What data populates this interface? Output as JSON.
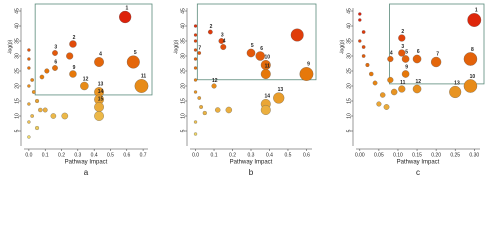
{
  "chart_data": [
    {
      "type": "scatter",
      "panel": "a",
      "xlabel": "Pathway Impact",
      "ylabel": "-log(p)",
      "x": [
        0.59,
        0.27,
        0.16,
        0.43,
        0.64,
        0.16,
        0.25,
        0.11,
        0.27,
        0.08,
        0.69,
        0.34,
        0.43,
        0.43,
        0.43,
        0.0,
        0.0,
        0.0,
        0.02,
        0.03,
        0.05,
        0.07,
        0.0,
        0.0,
        0.02,
        0.1,
        0.15,
        0.22,
        0.43,
        0.0,
        0.05,
        0.0
      ],
      "values": [
        43,
        34,
        31,
        28,
        28,
        26,
        30,
        25,
        24,
        23,
        20,
        20,
        18,
        15.5,
        13,
        32,
        29,
        26,
        22,
        18,
        15,
        12,
        20,
        14,
        10,
        12,
        10,
        10,
        10,
        8,
        6,
        3
      ],
      "point_labels": [
        "1",
        "2",
        "3",
        "4",
        "5",
        "6",
        null,
        null,
        "9",
        null,
        "11",
        "12",
        "13",
        "14",
        "15",
        null,
        null,
        null,
        null,
        null,
        null,
        null,
        null,
        null,
        null,
        null,
        null,
        null,
        null,
        null,
        null,
        null
      ],
      "xlim": [
        -0.03,
        0.73
      ],
      "xticks": [
        {
          "value": 0,
          "label": "0.0"
        },
        0.1,
        0.2,
        0.3,
        0.4,
        0.5,
        0.6,
        0.7
      ],
      "ylim": [
        0,
        46
      ],
      "yticks": [
        5,
        10,
        15,
        20,
        25,
        30,
        35,
        40,
        45
      ]
    },
    {
      "type": "scatter",
      "panel": "b",
      "xlabel": "Pathway Impact",
      "ylabel": "-log(p)",
      "x": [
        0.08,
        0.14,
        0.15,
        0.3,
        0.35,
        0.02,
        0.55,
        0.6,
        0.38,
        0.38,
        0.1,
        0.45,
        0.38,
        0.38,
        0.0,
        0.0,
        0.0,
        0.0,
        0.0,
        0.0,
        0.0,
        0.0,
        0.02,
        0.03,
        0.05,
        0.12,
        0.18,
        0.0,
        0.0
      ],
      "values": [
        38,
        35,
        33,
        31,
        30,
        31,
        37,
        24,
        27,
        24,
        20,
        16,
        14,
        12,
        40,
        37,
        35,
        32,
        29,
        26,
        22,
        18,
        16,
        13,
        11,
        12,
        12,
        8,
        4
      ],
      "point_labels": [
        "2",
        "3",
        "4",
        "5",
        "6",
        "7",
        null,
        "9",
        "10",
        "11",
        "12",
        "13",
        "14",
        null,
        null,
        null,
        null,
        null,
        null,
        null,
        null,
        null,
        null,
        null,
        null,
        null,
        null,
        null,
        null
      ],
      "xlim": [
        -0.03,
        0.63
      ],
      "xticks": [
        {
          "value": 0,
          "label": "0.0"
        },
        0.1,
        0.2,
        0.3,
        0.4,
        0.5,
        0.6
      ],
      "ylim": [
        0,
        46
      ],
      "yticks": [
        5,
        10,
        15,
        20,
        25,
        30,
        35,
        40,
        45
      ]
    },
    {
      "type": "scatter",
      "panel": "c",
      "xlabel": "Pathway Impact",
      "ylabel": "-log(p)",
      "x": [
        0.3,
        0.11,
        0.11,
        0.08,
        0.12,
        0.15,
        0.2,
        0.29,
        0.12,
        0.29,
        0.11,
        0.15,
        0.25,
        0.0,
        0.0,
        0.01,
        0.0,
        0.01,
        0.01,
        0.02,
        0.03,
        0.04,
        0.06,
        0.05,
        0.07,
        0.08,
        0.09
      ],
      "values": [
        42,
        36,
        31,
        29,
        29,
        29,
        28,
        29,
        24,
        20,
        19,
        19,
        18,
        44,
        42,
        38,
        35,
        33,
        30,
        27,
        24,
        21,
        17,
        14,
        13,
        22,
        18
      ],
      "point_labels": [
        "1",
        "2",
        "3",
        "4",
        "5",
        "6",
        "7",
        "8",
        "9",
        "10",
        "11",
        "12",
        "13",
        null,
        null,
        null,
        null,
        null,
        null,
        null,
        null,
        null,
        null,
        null,
        null,
        null,
        null
      ],
      "xlim": [
        -0.01,
        0.315
      ],
      "xticks": [
        {
          "value": 0,
          "label": "0.00"
        },
        0.05,
        {
          "value": 0.1,
          "label": "0.10"
        },
        0.15,
        {
          "value": 0.2,
          "label": "0.20"
        },
        0.25,
        {
          "value": 0.3,
          "label": "0.30"
        }
      ],
      "ylim": [
        0,
        46
      ],
      "yticks": [
        5,
        10,
        15,
        20,
        25,
        30,
        35,
        40,
        45
      ]
    }
  ]
}
